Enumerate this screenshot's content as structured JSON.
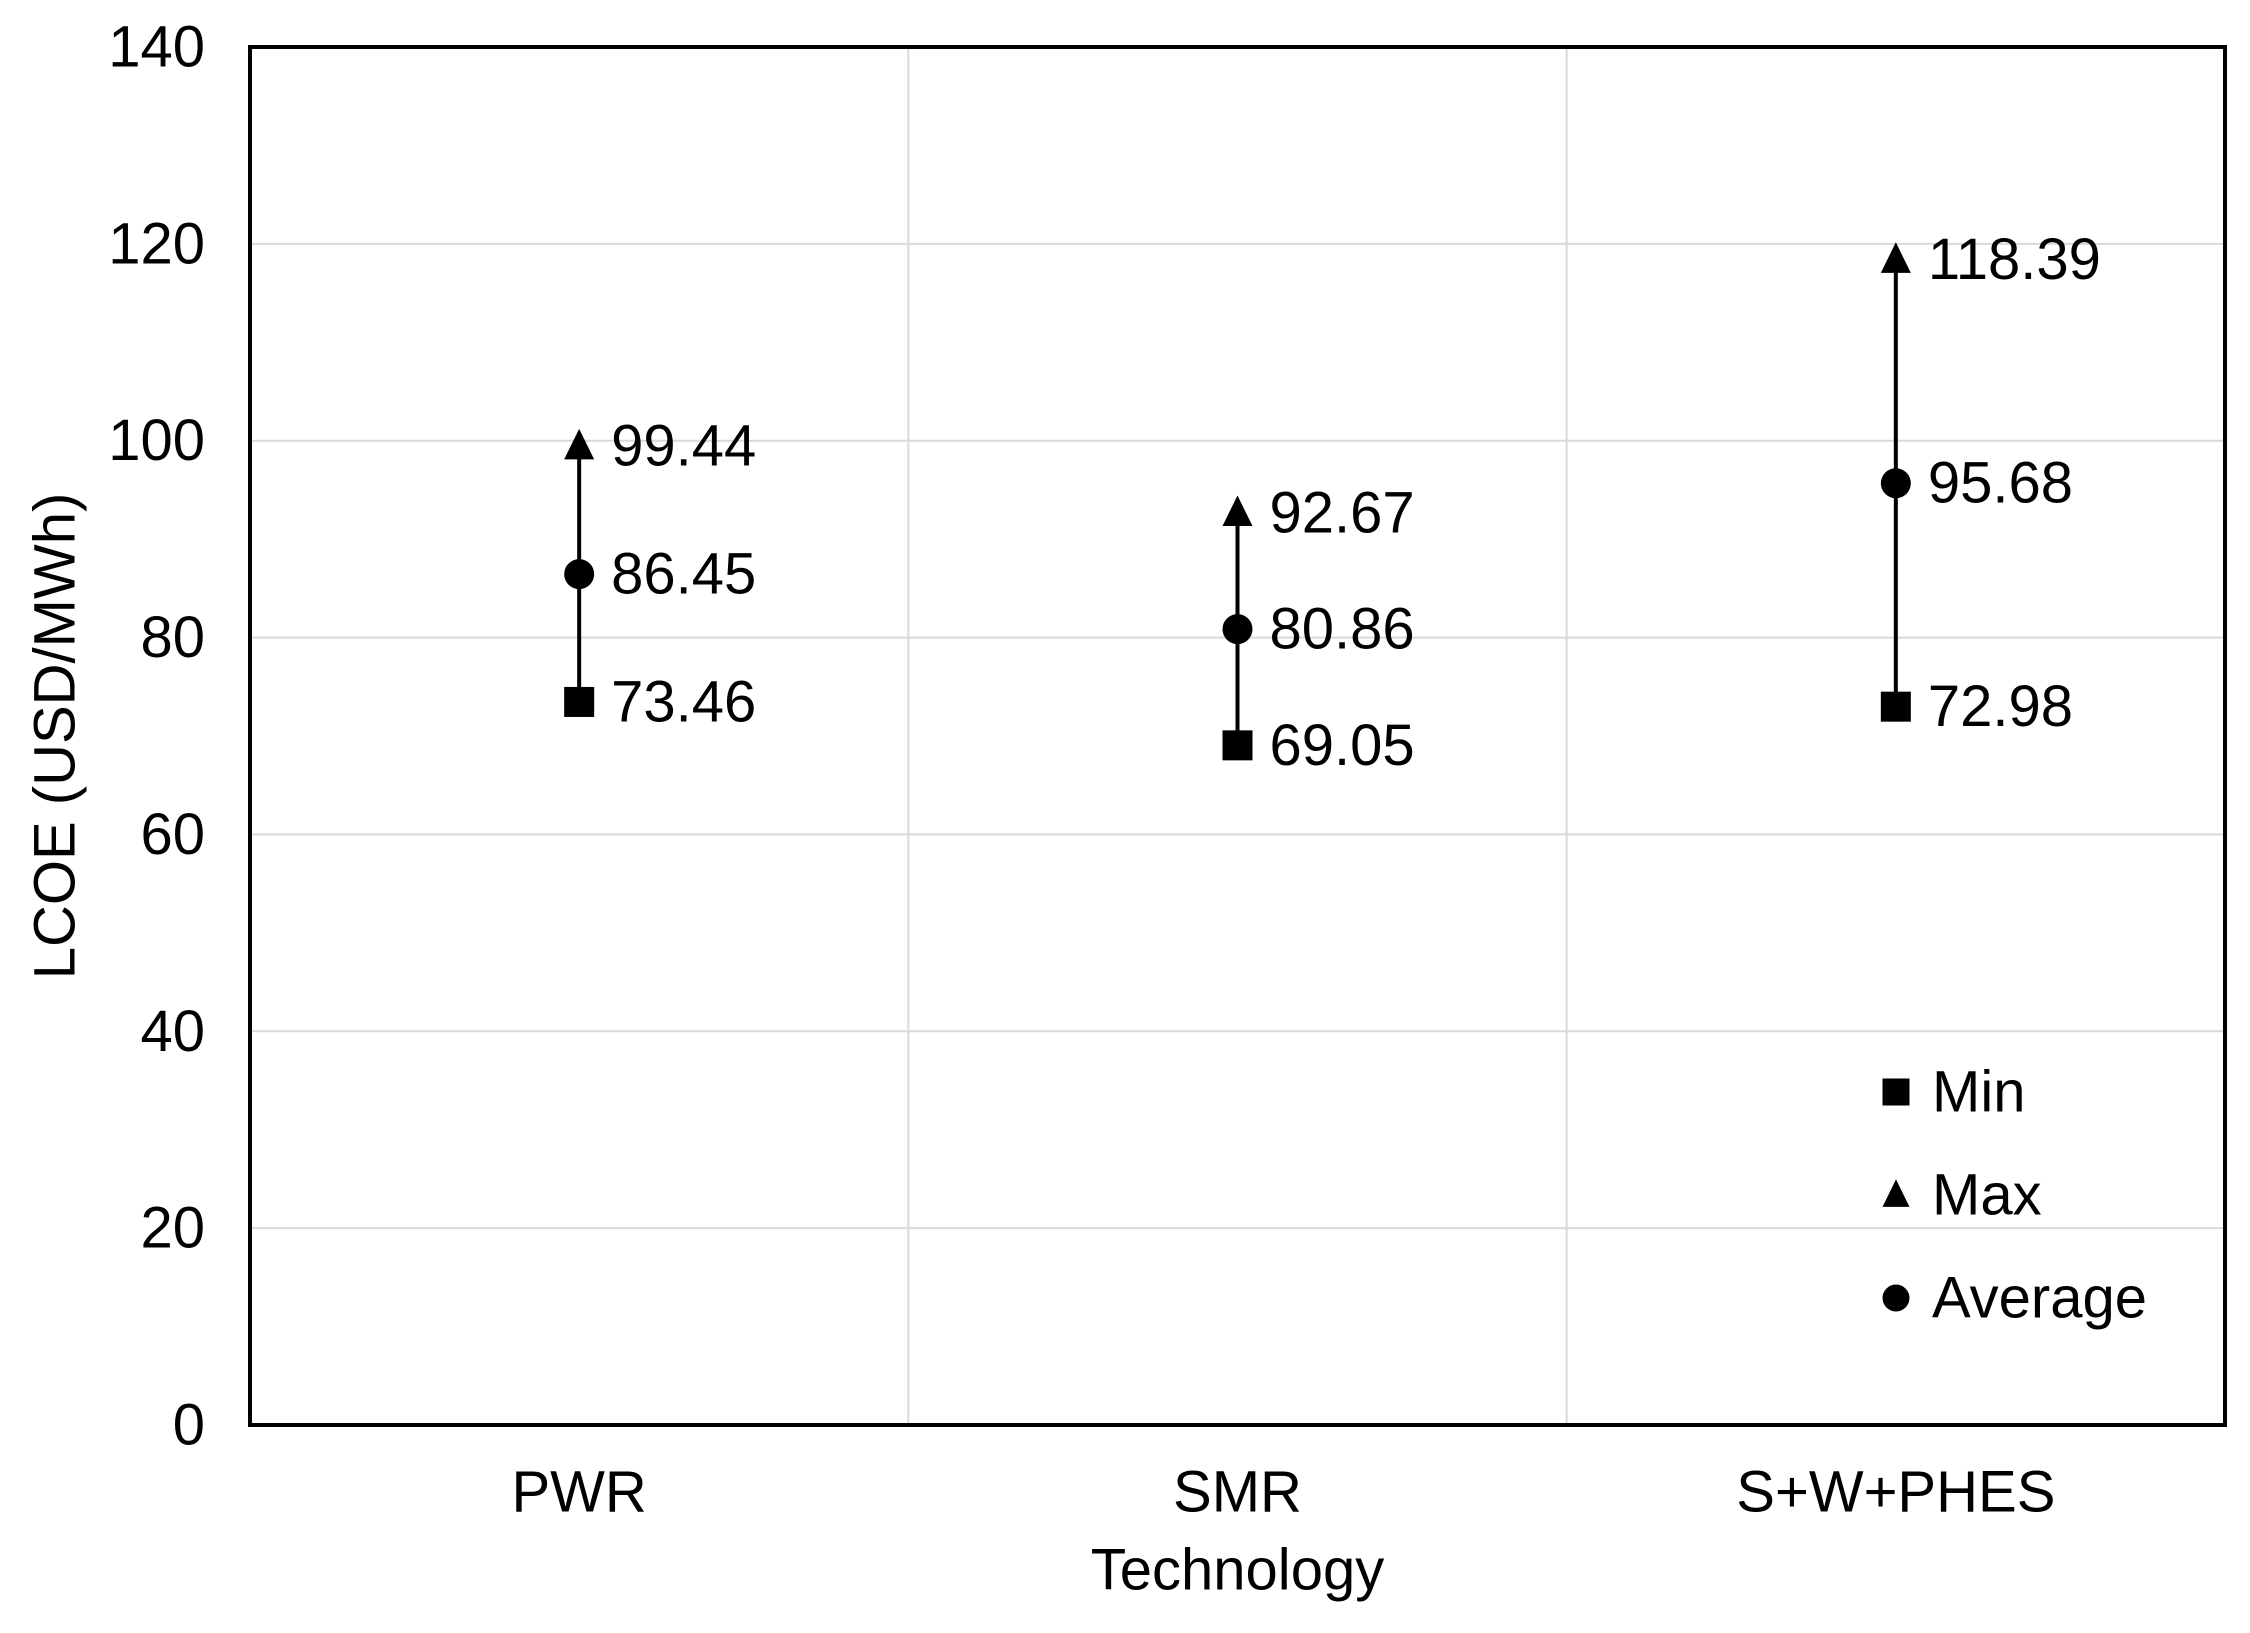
{
  "figure": {
    "background": "#ffffff"
  },
  "chart_data": {
    "type": "scatter",
    "subtype": "min-max-average range plot with arrows from Min to Max",
    "title": "",
    "xlabel": "Technology",
    "ylabel": "LCOE (USD/MWh)",
    "ylim": [
      0,
      140
    ],
    "ytick_step": 20,
    "yticks": [
      0,
      20,
      40,
      60,
      80,
      100,
      120,
      140
    ],
    "categories": [
      "PWR",
      "SMR",
      "S+W+PHES"
    ],
    "series": [
      {
        "name": "Min",
        "marker": "square",
        "values": [
          73.46,
          69.05,
          72.98
        ],
        "labels": [
          "73.46",
          "69.05",
          "72.98"
        ]
      },
      {
        "name": "Max",
        "marker": "triangle",
        "values": [
          99.44,
          92.67,
          118.39
        ],
        "labels": [
          "99.44",
          "92.67",
          "118.39"
        ]
      },
      {
        "name": "Average",
        "marker": "circle",
        "values": [
          86.45,
          80.86,
          95.68
        ],
        "labels": [
          "86.45",
          "80.86",
          "95.68"
        ]
      }
    ],
    "legend": {
      "position": "inside-bottom-right",
      "entries": [
        {
          "label": "Min",
          "marker": "square"
        },
        {
          "label": "Max",
          "marker": "triangle"
        },
        {
          "label": "Average",
          "marker": "circle"
        }
      ]
    },
    "grid": {
      "horizontal": true,
      "vertical_category_boundaries": true
    },
    "colors": {
      "marker": "#000000",
      "text": "#000000",
      "axis": "#000000",
      "gridline": "#d9d9d9",
      "background": "#ffffff"
    }
  }
}
